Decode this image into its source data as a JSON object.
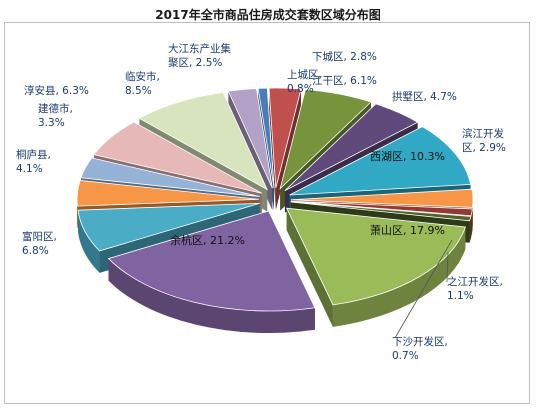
{
  "chart_data": {
    "type": "pie",
    "title": "2017年全市商品住房成交套数区域分布图",
    "unit": "%",
    "slices": [
      {
        "label": [
          "上城区,",
          "0.8%"
        ],
        "value": 0.8,
        "color": "#4a7ebb"
      },
      {
        "label": [
          "下城区, 2.8%"
        ],
        "value": 2.8,
        "color": "#c0504d"
      },
      {
        "label": [
          "江干区, 6.1%"
        ],
        "value": 6.1,
        "color": "#77933c"
      },
      {
        "label": [
          "拱墅区, 4.7%"
        ],
        "value": 4.7,
        "color": "#604a7b"
      },
      {
        "label": [
          "西湖区, 10.3%"
        ],
        "value": 10.3,
        "color": "#31a9c4",
        "inside": true
      },
      {
        "label": [
          "滨江开发",
          "区, 2.9%"
        ],
        "value": 2.9,
        "color": "#f79646"
      },
      {
        "label": [
          "之江开发区,",
          "1.1%"
        ],
        "value": 1.1,
        "color": "#953735"
      },
      {
        "label": [
          "下沙开发区,",
          "0.7%"
        ],
        "value": 0.7,
        "color": "#4f6228"
      },
      {
        "label": [
          "萧山区, 17.9%"
        ],
        "value": 17.9,
        "color": "#9bbb59",
        "inside": true
      },
      {
        "label": [
          "余杭区, 21.2%"
        ],
        "value": 21.2,
        "color": "#8064a2",
        "inside": true
      },
      {
        "label": [
          "富阳区,",
          "6.8%"
        ],
        "value": 6.8,
        "color": "#4bacc6"
      },
      {
        "label": [
          "桐庐县,",
          "4.1%"
        ],
        "value": 4.1,
        "color": "#f79646"
      },
      {
        "label": [
          "建德市,",
          "3.3%"
        ],
        "value": 3.3,
        "color": "#95b3d7"
      },
      {
        "label": [
          "淳安县, 6.3%"
        ],
        "value": 6.3,
        "color": "#e6b9b8"
      },
      {
        "label": [
          "临安市,",
          "8.5%"
        ],
        "value": 8.5,
        "color": "#d7e4bd"
      },
      {
        "label": [
          "大江东产业集",
          "聚区, 2.5%"
        ],
        "value": 2.5,
        "color": "#b3a2c7"
      }
    ]
  }
}
